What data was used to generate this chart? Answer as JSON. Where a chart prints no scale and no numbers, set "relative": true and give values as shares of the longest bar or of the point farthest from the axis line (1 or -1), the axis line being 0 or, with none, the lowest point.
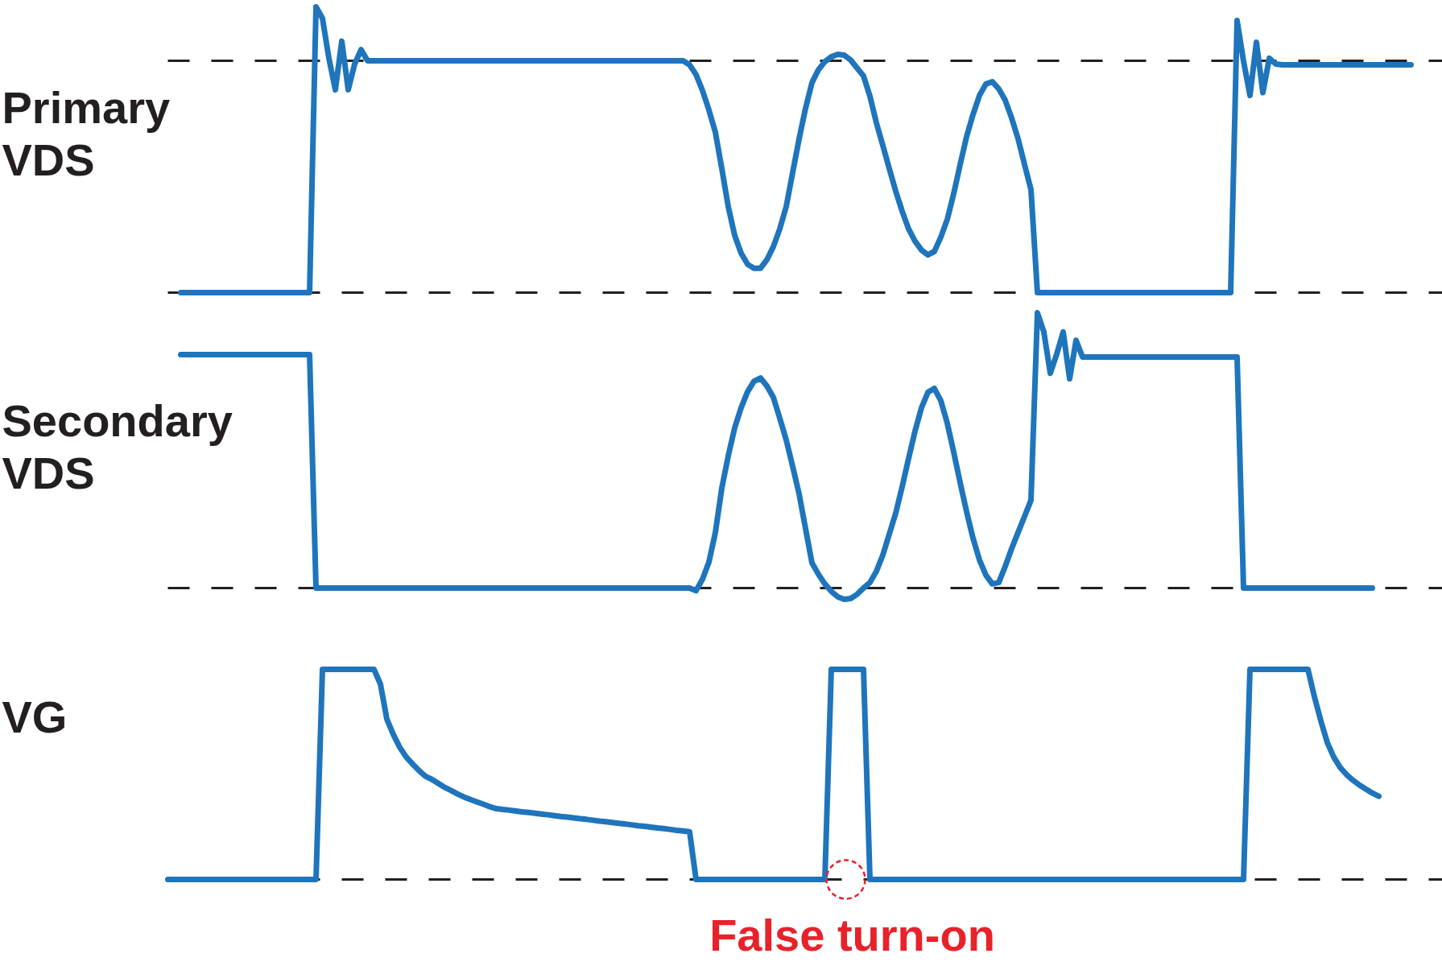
{
  "chart_data": [
    {
      "type": "line",
      "relative": true,
      "ylabel": "Primary VDS",
      "tick_labels": false,
      "color": "#1f75bc",
      "categories": [
        null,
        null,
        null,
        null,
        null,
        null,
        null,
        null,
        null,
        null,
        null,
        null,
        null,
        null,
        null,
        null,
        null,
        null,
        null,
        null,
        null,
        null,
        null,
        null,
        null,
        null,
        null,
        null,
        null,
        null,
        null,
        null,
        null,
        null,
        null,
        null,
        null,
        null,
        null,
        null,
        null,
        null,
        null,
        null,
        null,
        null,
        null,
        null,
        null,
        null,
        null,
        null,
        null,
        null,
        null,
        null,
        null,
        null,
        null,
        null,
        null,
        null,
        null,
        null,
        null,
        null,
        null,
        null,
        null,
        null,
        null,
        null,
        null,
        null,
        null,
        null,
        null,
        null,
        null,
        null,
        null,
        null,
        null,
        null,
        null,
        null,
        null,
        null,
        null,
        null,
        null,
        null,
        null,
        null,
        null,
        null,
        null,
        null,
        null,
        null,
        null,
        null,
        null,
        null,
        null,
        null,
        null,
        null,
        null,
        null,
        null,
        null,
        null,
        null,
        null,
        null,
        null,
        null,
        null,
        null,
        null,
        null,
        null,
        null,
        null,
        null,
        null,
        null,
        null,
        null,
        null,
        null,
        null,
        null,
        null,
        null,
        null,
        null,
        null,
        null,
        null,
        null,
        null,
        null,
        null,
        null,
        null,
        null,
        null,
        null,
        null,
        null,
        null,
        null,
        null,
        null,
        null,
        null,
        null,
        null,
        null,
        null,
        null,
        null,
        null,
        null,
        null,
        null,
        null,
        null,
        null,
        null,
        null,
        null,
        null,
        null,
        null,
        null,
        null,
        null,
        null,
        null,
        null,
        null,
        null,
        null,
        null,
        null,
        null,
        null,
        null,
        null,
        null,
        null
      ],
      "values": [
        null,
        null,
        0,
        0,
        0,
        0,
        0,
        0,
        0,
        0,
        0,
        0,
        0,
        0,
        0,
        0,
        0,
        0,
        0,
        0,
        0,
        0,
        0,
        1,
        0.96,
        0.82,
        0.71,
        0.88,
        0.71,
        0.8,
        0.85,
        0.811,
        0.811,
        0.811,
        0.811,
        0.811,
        0.811,
        0.811,
        0.811,
        0.811,
        0.811,
        0.811,
        0.811,
        0.811,
        0.811,
        0.811,
        0.811,
        0.811,
        0.811,
        0.811,
        0.811,
        0.811,
        0.811,
        0.811,
        0.811,
        0.811,
        0.811,
        0.811,
        0.811,
        0.811,
        0.811,
        0.811,
        0.811,
        0.811,
        0.811,
        0.811,
        0.811,
        0.811,
        0.811,
        0.811,
        0.811,
        0.811,
        0.811,
        0.811,
        0.811,
        0.811,
        0.811,
        0.811,
        0.811,
        0.811,
        0.811,
        0.797,
        0.763,
        0.707,
        0.639,
        0.561,
        0.434,
        0.301,
        0.2,
        0.138,
        0.099,
        0.085,
        0.085,
        0.115,
        0.161,
        0.223,
        0.301,
        0.42,
        0.538,
        0.645,
        0.735,
        0.78,
        0.808,
        0.825,
        0.834,
        0.831,
        0.814,
        0.786,
        0.758,
        0.687,
        0.594,
        0.515,
        0.434,
        0.355,
        0.285,
        0.223,
        0.18,
        0.149,
        0.132,
        0.144,
        0.194,
        0.256,
        0.346,
        0.448,
        0.546,
        0.623,
        0.69,
        0.73,
        0.738,
        0.713,
        0.673,
        0.611,
        0.538,
        0.448,
        0.36,
        0,
        0,
        0,
        0,
        0,
        0,
        0,
        0,
        0,
        0,
        0,
        0,
        0,
        0,
        0,
        0,
        0,
        0,
        0,
        0,
        0,
        0,
        0,
        0,
        0,
        0,
        0,
        0,
        0,
        0,
        0,
        0.952,
        0.81,
        0.69,
        0.876,
        0.7,
        0.82,
        0.8,
        0.797,
        0.797,
        0.797,
        0.797,
        0.797,
        0.797,
        0.797,
        0.797,
        0.797,
        0.797,
        0.797,
        0.797,
        0.797,
        0.797,
        0.797,
        0.797,
        0.797,
        0.797,
        0.797,
        0.797,
        0.797
      ],
      "ref_lines": [
        {
          "axis": "y",
          "value": 0,
          "color": "#231f20",
          "line_style": "dashed"
        },
        {
          "axis": "y",
          "value": 0.811,
          "color": "#231f20",
          "line_style": "dashed"
        }
      ]
    },
    {
      "type": "line",
      "relative": true,
      "ylabel": "Secondary VDS",
      "tick_labels": false,
      "color": "#1f75bc",
      "categories": [
        null,
        null,
        null,
        null,
        null,
        null,
        null,
        null,
        null,
        null,
        null,
        null,
        null,
        null,
        null,
        null,
        null,
        null,
        null,
        null,
        null,
        null,
        null,
        null,
        null,
        null,
        null,
        null,
        null,
        null,
        null,
        null,
        null,
        null,
        null,
        null,
        null,
        null,
        null,
        null,
        null,
        null,
        null,
        null,
        null,
        null,
        null,
        null,
        null,
        null,
        null,
        null,
        null,
        null,
        null,
        null,
        null,
        null,
        null,
        null,
        null,
        null,
        null,
        null,
        null,
        null,
        null,
        null,
        null,
        null,
        null,
        null,
        null,
        null,
        null,
        null,
        null,
        null,
        null,
        null,
        null,
        null,
        null,
        null,
        null,
        null,
        null,
        null,
        null,
        null,
        null,
        null,
        null,
        null,
        null,
        null,
        null,
        null,
        null,
        null,
        null,
        null,
        null,
        null,
        null,
        null,
        null,
        null,
        null,
        null,
        null,
        null,
        null,
        null,
        null,
        null,
        null,
        null,
        null,
        null,
        null,
        null,
        null,
        null,
        null,
        null,
        null,
        null,
        null,
        null,
        null,
        null,
        null,
        null,
        null,
        null,
        null,
        null,
        null,
        null,
        null,
        null,
        null,
        null,
        null,
        null,
        null,
        null,
        null,
        null,
        null,
        null,
        null,
        null,
        null,
        null,
        null,
        null,
        null,
        null,
        null,
        null,
        null,
        null,
        null,
        null,
        null,
        null,
        null,
        null,
        null,
        null,
        null,
        null,
        null,
        null,
        null,
        null,
        null,
        null,
        null,
        null,
        null,
        null,
        null,
        null,
        null,
        null,
        null,
        null,
        null,
        null,
        null,
        null
      ],
      "values": [
        null,
        null,
        0.848,
        0.848,
        0.848,
        0.848,
        0.848,
        0.848,
        0.848,
        0.848,
        0.848,
        0.848,
        0.848,
        0.848,
        0.848,
        0.848,
        0.848,
        0.848,
        0.848,
        0.848,
        0.848,
        0.848,
        0.848,
        0,
        0,
        0,
        0,
        0,
        0,
        0,
        0,
        0,
        0,
        0,
        0,
        0,
        0,
        0,
        0,
        0,
        0,
        0,
        0,
        0,
        0,
        0,
        0,
        0,
        0,
        0,
        0,
        0,
        0,
        0,
        0,
        0,
        0,
        0,
        0,
        0,
        0,
        0,
        0,
        0,
        0,
        0,
        0,
        0,
        0,
        0,
        0,
        0,
        0,
        0,
        0,
        0,
        0,
        0,
        0,
        0,
        0,
        0,
        -0.01,
        0.032,
        0.094,
        0.202,
        0.363,
        0.48,
        0.582,
        0.655,
        0.713,
        0.751,
        0.763,
        0.734,
        0.693,
        0.617,
        0.538,
        0.442,
        0.342,
        0.216,
        0.091,
        0.05,
        0.015,
        -0.012,
        -0.032,
        -0.041,
        -0.038,
        -0.023,
        0,
        0.02,
        0.061,
        0.12,
        0.196,
        0.272,
        0.368,
        0.471,
        0.57,
        0.655,
        0.711,
        0.725,
        0.681,
        0.599,
        0.494,
        0.383,
        0.278,
        0.181,
        0.102,
        0.047,
        0.015,
        0.02,
        0.079,
        0.143,
        0.202,
        0.26,
        0.319,
        1,
        0.93,
        0.78,
        0.85,
        0.93,
        0.76,
        0.9,
        0.839,
        0.839,
        0.839,
        0.839,
        0.839,
        0.839,
        0.839,
        0.839,
        0.839,
        0.839,
        0.839,
        0.839,
        0.839,
        0.839,
        0.839,
        0.839,
        0.839,
        0.839,
        0.839,
        0.839,
        0.839,
        0.839,
        0.839,
        0.839,
        0.839,
        0,
        0,
        0,
        0,
        0,
        0,
        0,
        0,
        0,
        0,
        0,
        0,
        0,
        0,
        0,
        0,
        0,
        0,
        0,
        0,
        0,
        null,
        null,
        null,
        null,
        null,
        null
      ],
      "ref_lines": [
        {
          "axis": "y",
          "value": 0,
          "color": "#231f20",
          "line_style": "dashed"
        }
      ]
    },
    {
      "type": "line",
      "relative": true,
      "ylabel": "VG",
      "tick_labels": false,
      "color": "#1f75bc",
      "annotations": [
        "False turn-on"
      ],
      "categories": [
        null,
        null,
        null,
        null,
        null,
        null,
        null,
        null,
        null,
        null,
        null,
        null,
        null,
        null,
        null,
        null,
        null,
        null,
        null,
        null,
        null,
        null,
        null,
        null,
        null,
        null,
        null,
        null,
        null,
        null,
        null,
        null,
        null,
        null,
        null,
        null,
        null,
        null,
        null,
        null,
        null,
        null,
        null,
        null,
        null,
        null,
        null,
        null,
        null,
        null,
        null,
        null,
        null,
        null,
        null,
        null,
        null,
        null,
        null,
        null,
        null,
        null,
        null,
        null,
        null,
        null,
        null,
        null,
        null,
        null,
        null,
        null,
        null,
        null,
        null,
        null,
        null,
        null,
        null,
        null,
        null,
        null,
        null,
        null,
        null,
        null,
        null,
        null,
        null,
        null,
        null,
        null,
        null,
        null,
        null,
        null,
        null,
        null,
        null,
        null,
        null,
        null,
        null,
        null,
        null,
        null,
        null,
        null,
        null,
        null,
        null,
        null,
        null,
        null,
        null,
        null,
        null,
        null,
        null,
        null,
        null,
        null,
        null,
        null,
        null,
        null,
        null,
        null,
        null,
        null,
        null,
        null,
        null,
        null,
        null,
        null,
        null,
        null,
        null,
        null,
        null,
        null,
        null,
        null,
        null,
        null,
        null,
        null,
        null,
        null,
        null,
        null,
        null,
        null,
        null,
        null,
        null,
        null,
        null,
        null,
        null,
        null,
        null,
        null,
        null,
        null,
        null,
        null,
        null,
        null,
        null,
        null,
        null,
        null,
        null,
        null,
        null,
        null,
        null,
        null,
        null,
        null,
        null,
        null,
        null,
        null,
        null,
        null,
        null,
        null,
        null,
        null,
        null,
        null
      ],
      "values": [
        0,
        0,
        0,
        0,
        0,
        0,
        0,
        0,
        0,
        0,
        0,
        0,
        0,
        0,
        0,
        0,
        0,
        0,
        0,
        0,
        0,
        0,
        0,
        0,
        1,
        1,
        1,
        1,
        1,
        1,
        1,
        1,
        1,
        0.93,
        0.763,
        0.69,
        0.629,
        0.583,
        0.549,
        0.518,
        0.491,
        0.476,
        0.457,
        0.438,
        0.423,
        0.407,
        0.392,
        0.38,
        0.369,
        0.358,
        0.346,
        0.337,
        0.333,
        0.33,
        0.326,
        0.322,
        0.319,
        0.315,
        0.311,
        0.308,
        0.304,
        0.3,
        0.297,
        0.293,
        0.289,
        0.286,
        0.282,
        0.278,
        0.275,
        0.271,
        0.267,
        0.264,
        0.26,
        0.256,
        0.253,
        0.249,
        0.245,
        0.242,
        0.238,
        0.234,
        0.231,
        0.227,
        0,
        0,
        0,
        0,
        0,
        0,
        0,
        0,
        0,
        0,
        0,
        0,
        0,
        0,
        0,
        0,
        0,
        0,
        0,
        0,
        0,
        1,
        1,
        1,
        1,
        1,
        1,
        0,
        0,
        0,
        0,
        0,
        0,
        0,
        0,
        0,
        0,
        0,
        0,
        0,
        0,
        0,
        0,
        0,
        0,
        0,
        0,
        0,
        0,
        0,
        0,
        0,
        0,
        0,
        0,
        0,
        0,
        0,
        0,
        0,
        0,
        0,
        0,
        0,
        0,
        0,
        0,
        0,
        0,
        0,
        0,
        0,
        0,
        0,
        0,
        0,
        0,
        0,
        0,
        0,
        0,
        0,
        0,
        0,
        0,
        0,
        1,
        1,
        1,
        1,
        1,
        1,
        1,
        1,
        1,
        1,
        0.87,
        0.755,
        0.652,
        0.583,
        0.533,
        0.499,
        0.472,
        0.449,
        0.43,
        0.411,
        0.396,
        null,
        null,
        null,
        null,
        null
      ],
      "ref_lines": [
        {
          "axis": "y",
          "value": 0,
          "color": "#231f20",
          "line_style": "dashed"
        }
      ]
    }
  ]
}
